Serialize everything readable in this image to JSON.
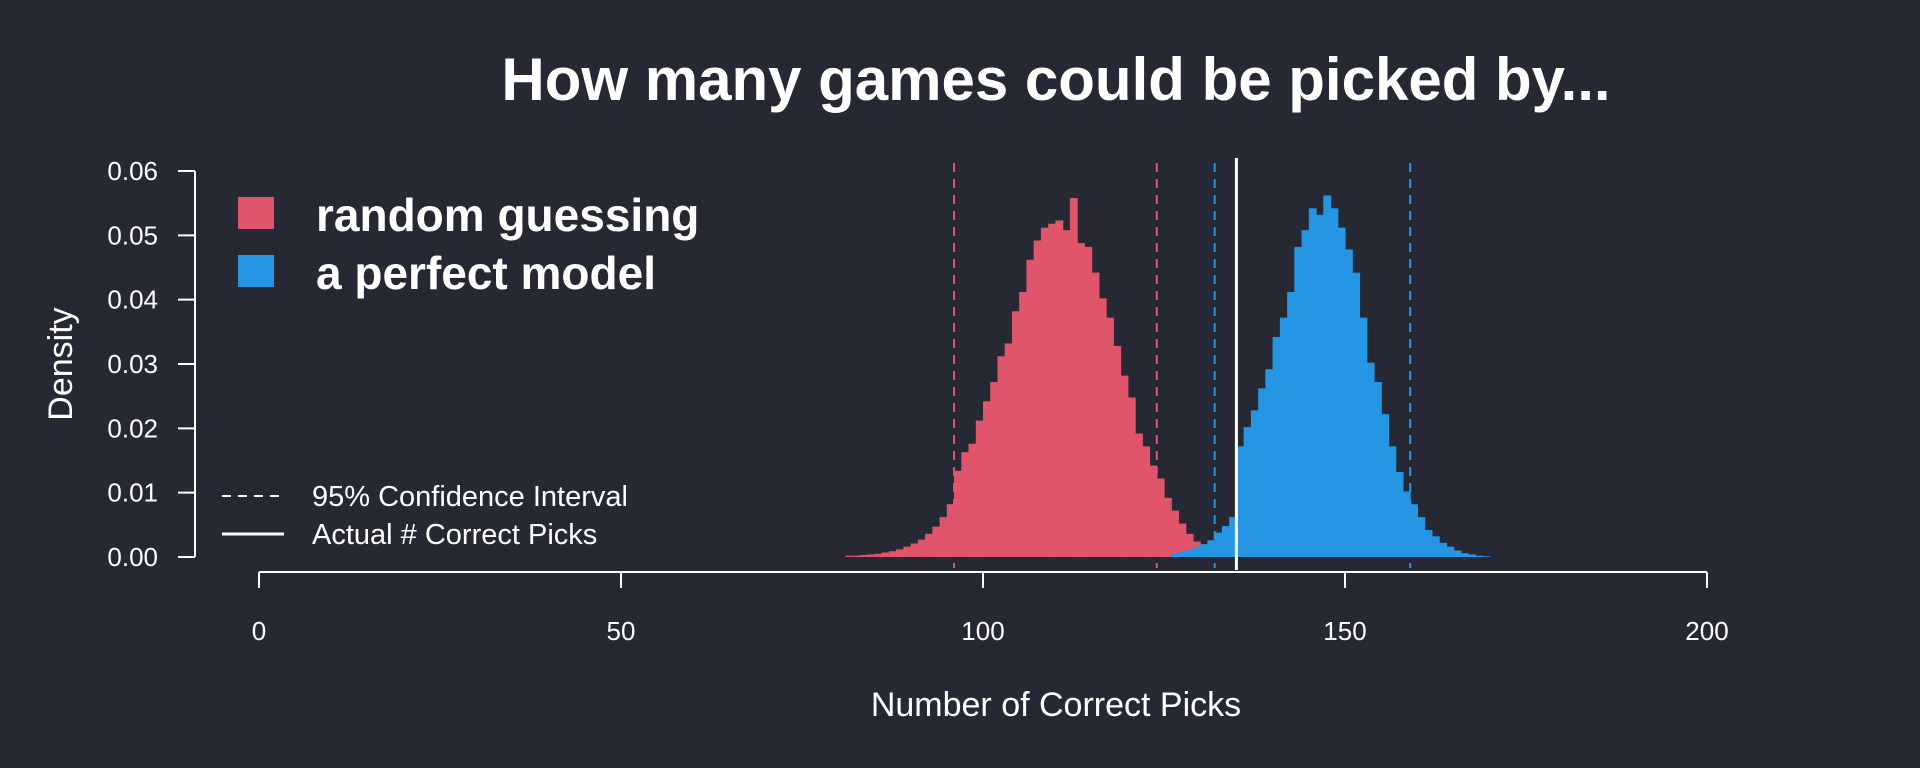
{
  "chart_data": {
    "type": "histogram",
    "title": "How many games could be picked by...",
    "xlabel": "Number of Correct Picks",
    "ylabel": "Density",
    "xlim": [
      0,
      200
    ],
    "ylim": [
      0,
      0.06
    ],
    "x_ticks": [
      "0",
      "50",
      "100",
      "150",
      "200"
    ],
    "y_ticks": [
      "0.00",
      "0.01",
      "0.02",
      "0.03",
      "0.04",
      "0.05",
      "0.06"
    ],
    "bin_width": 1,
    "series": [
      {
        "name": "random guessing",
        "color": "#e0556b",
        "bins_start": [
          81,
          82,
          83,
          84,
          85,
          86,
          87,
          88,
          89,
          90,
          91,
          92,
          93,
          94,
          95,
          96,
          97,
          98,
          99,
          100,
          101,
          102,
          103,
          104,
          105,
          106,
          107,
          108,
          109,
          110,
          111,
          112,
          113,
          114,
          115,
          116,
          117,
          118,
          119,
          120,
          121,
          122,
          123,
          124,
          125,
          126,
          127,
          128,
          129,
          130,
          131,
          132,
          133,
          134,
          135
        ],
        "densities": [
          0.0002,
          0.0002,
          0.0003,
          0.0004,
          0.0005,
          0.0007,
          0.0009,
          0.0012,
          0.0016,
          0.0021,
          0.0027,
          0.0036,
          0.0047,
          0.0062,
          0.0082,
          0.0134,
          0.0163,
          0.0176,
          0.0212,
          0.0242,
          0.0272,
          0.0312,
          0.0332,
          0.0382,
          0.0412,
          0.0462,
          0.0492,
          0.0512,
          0.0518,
          0.0523,
          0.0508,
          0.0558,
          0.0488,
          0.0482,
          0.0442,
          0.0402,
          0.0372,
          0.0328,
          0.0282,
          0.0248,
          0.0192,
          0.0172,
          0.0142,
          0.0122,
          0.0092,
          0.0072,
          0.0052,
          0.0036,
          0.0024,
          0.0016,
          0.0011,
          0.0007,
          0.0004,
          0.0002,
          0.0001
        ]
      },
      {
        "name": "a perfect model",
        "color": "#2596e4",
        "bins_start": [
          126,
          127,
          128,
          129,
          130,
          131,
          132,
          133,
          134,
          135,
          136,
          137,
          138,
          139,
          140,
          141,
          142,
          143,
          144,
          145,
          146,
          147,
          148,
          149,
          150,
          151,
          152,
          153,
          154,
          155,
          156,
          157,
          158,
          159,
          160,
          161,
          162,
          163,
          164,
          165,
          166,
          167,
          168,
          169
        ],
        "densities": [
          0.0006,
          0.0009,
          0.0012,
          0.0016,
          0.002,
          0.0026,
          0.0038,
          0.0048,
          0.0062,
          0.0172,
          0.0202,
          0.0228,
          0.0262,
          0.0292,
          0.0342,
          0.0372,
          0.0412,
          0.0482,
          0.0508,
          0.0542,
          0.0532,
          0.0562,
          0.0542,
          0.0512,
          0.0478,
          0.0442,
          0.0372,
          0.0302,
          0.0272,
          0.0222,
          0.0172,
          0.0132,
          0.0102,
          0.0082,
          0.0062,
          0.0042,
          0.0032,
          0.0022,
          0.0016,
          0.001,
          0.0006,
          0.0004,
          0.0002,
          0.0001
        ]
      }
    ],
    "reference_lines": [
      {
        "kind": "ci",
        "series": "random guessing",
        "x": 96
      },
      {
        "kind": "ci",
        "series": "random guessing",
        "x": 124
      },
      {
        "kind": "ci",
        "series": "a perfect model",
        "x": 132
      },
      {
        "kind": "ci",
        "series": "a perfect model",
        "x": 159
      },
      {
        "kind": "actual",
        "x": 135
      }
    ],
    "legend_top": [
      "random guessing",
      "a perfect model"
    ],
    "legend_bottom": [
      "95% Confidence Interval",
      "Actual # Correct Picks"
    ],
    "legend_placement": "top-left",
    "colors": {
      "background": "#262833",
      "text": "#ffffff",
      "actual_line": "#ffffff"
    }
  }
}
